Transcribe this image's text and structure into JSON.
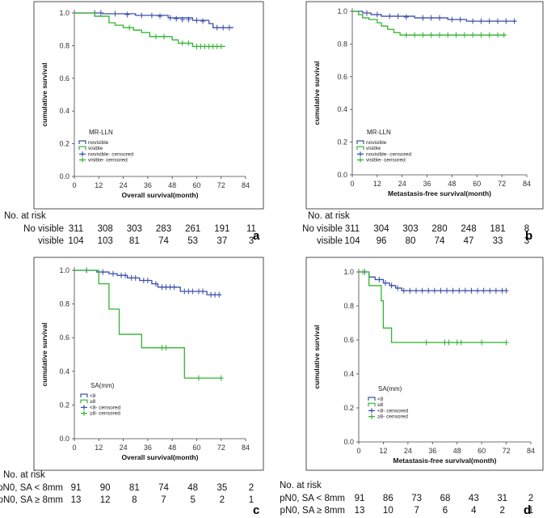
{
  "colors": {
    "blue": "#3b4fa8",
    "green": "#2fb52f"
  },
  "chart_data": [
    {
      "panel_label": "a",
      "type": "line",
      "kind": "kaplan-meier",
      "ylabel": "cumulative survival",
      "xlabel": "Overall survival(month)",
      "xticks": [
        "0",
        "12",
        "24",
        "36",
        "48",
        "60",
        "72",
        "84"
      ],
      "yticks": [
        "0.0",
        "0.2",
        "0.4",
        "0.6",
        "0.8",
        "1.0"
      ],
      "xlim": [
        0,
        84
      ],
      "ylim": [
        0,
        1
      ],
      "legend": {
        "title": "MR-LLN",
        "entries": [
          "novisible",
          "visible",
          "novisible- censored",
          "visible- censored"
        ]
      },
      "series": [
        {
          "name": "novisible",
          "color": "blue",
          "steps": [
            [
              0,
              1.0
            ],
            [
              14,
              0.995
            ],
            [
              30,
              0.985
            ],
            [
              46,
              0.97
            ],
            [
              58,
              0.955
            ],
            [
              66,
              0.935
            ],
            [
              68,
              0.91
            ],
            [
              78,
              0.91
            ]
          ],
          "censored": [
            [
              10,
              1.0
            ],
            [
              13,
              1.0
            ],
            [
              20,
              0.995
            ],
            [
              26,
              0.99
            ],
            [
              33,
              0.985
            ],
            [
              38,
              0.985
            ],
            [
              42,
              0.98
            ],
            [
              47,
              0.97
            ],
            [
              50,
              0.965
            ],
            [
              53,
              0.96
            ],
            [
              56,
              0.96
            ],
            [
              60,
              0.955
            ],
            [
              63,
              0.95
            ],
            [
              70,
              0.91
            ],
            [
              73,
              0.91
            ],
            [
              76,
              0.91
            ]
          ]
        },
        {
          "name": "visible",
          "color": "green",
          "steps": [
            [
              0,
              1.0
            ],
            [
              10,
              0.98
            ],
            [
              17,
              0.94
            ],
            [
              20,
              0.925
            ],
            [
              24,
              0.91
            ],
            [
              29,
              0.895
            ],
            [
              33,
              0.88
            ],
            [
              37,
              0.855
            ],
            [
              48,
              0.835
            ],
            [
              51,
              0.815
            ],
            [
              58,
              0.795
            ],
            [
              74,
              0.795
            ]
          ],
          "censored": [
            [
              27,
              0.91
            ],
            [
              40,
              0.855
            ],
            [
              44,
              0.855
            ],
            [
              53,
              0.815
            ],
            [
              56,
              0.815
            ],
            [
              60,
              0.795
            ],
            [
              62,
              0.795
            ],
            [
              64,
              0.795
            ],
            [
              66,
              0.795
            ],
            [
              68,
              0.795
            ],
            [
              70,
              0.795
            ],
            [
              72,
              0.795
            ]
          ]
        }
      ],
      "risk_table": {
        "header": "No. at risk",
        "rows": [
          {
            "label": "No visible",
            "values": [
              "311",
              "308",
              "303",
              "283",
              "261",
              "191",
              "11"
            ]
          },
          {
            "label": "visible",
            "values": [
              "104",
              "103",
              "81",
              "74",
              "53",
              "37",
              "3"
            ]
          }
        ]
      }
    },
    {
      "panel_label": "b",
      "type": "line",
      "kind": "kaplan-meier",
      "ylabel": "cumulative survival",
      "xlabel": "Metastasis-free survival(month)",
      "xticks": [
        "0",
        "12",
        "24",
        "36",
        "48",
        "60",
        "72",
        "84"
      ],
      "yticks": [
        "0.0",
        "0.2",
        "0.4",
        "0.6",
        "0.8",
        "1.0"
      ],
      "xlim": [
        0,
        84
      ],
      "ylim": [
        0,
        1
      ],
      "legend": {
        "title": "MR-LLN",
        "entries": [
          "novisible",
          "visible",
          "novisible- censored",
          "visible- censored"
        ]
      },
      "series": [
        {
          "name": "novisible",
          "color": "blue",
          "steps": [
            [
              0,
              1.0
            ],
            [
              5,
              0.99
            ],
            [
              9,
              0.98
            ],
            [
              14,
              0.97
            ],
            [
              30,
              0.96
            ],
            [
              46,
              0.95
            ],
            [
              55,
              0.94
            ],
            [
              79,
              0.94
            ]
          ],
          "censored": [
            [
              7,
              0.99
            ],
            [
              12,
              0.98
            ],
            [
              18,
              0.97
            ],
            [
              22,
              0.97
            ],
            [
              26,
              0.965
            ],
            [
              34,
              0.96
            ],
            [
              38,
              0.96
            ],
            [
              42,
              0.96
            ],
            [
              48,
              0.95
            ],
            [
              52,
              0.95
            ],
            [
              58,
              0.94
            ],
            [
              62,
              0.94
            ],
            [
              66,
              0.94
            ],
            [
              70,
              0.94
            ],
            [
              74,
              0.94
            ],
            [
              78,
              0.94
            ]
          ]
        },
        {
          "name": "visible",
          "color": "green",
          "steps": [
            [
              0,
              1.0
            ],
            [
              3,
              0.98
            ],
            [
              5,
              0.96
            ],
            [
              8,
              0.95
            ],
            [
              12,
              0.93
            ],
            [
              14,
              0.91
            ],
            [
              17,
              0.89
            ],
            [
              20,
              0.87
            ],
            [
              23,
              0.855
            ],
            [
              74,
              0.855
            ]
          ],
          "censored": [
            [
              26,
              0.855
            ],
            [
              30,
              0.855
            ],
            [
              34,
              0.855
            ],
            [
              38,
              0.855
            ],
            [
              42,
              0.855
            ],
            [
              46,
              0.855
            ],
            [
              50,
              0.855
            ],
            [
              54,
              0.855
            ],
            [
              58,
              0.855
            ],
            [
              62,
              0.855
            ],
            [
              66,
              0.855
            ],
            [
              70,
              0.855
            ],
            [
              73,
              0.855
            ]
          ]
        }
      ],
      "risk_table": {
        "header": "No. at risk",
        "rows": [
          {
            "label": "No visible",
            "values": [
              "311",
              "304",
              "303",
              "280",
              "248",
              "181",
              "8"
            ]
          },
          {
            "label": "visible",
            "values": [
              "104",
              "96",
              "80",
              "74",
              "47",
              "33",
              "3"
            ]
          }
        ]
      }
    },
    {
      "panel_label": "c",
      "type": "line",
      "kind": "kaplan-meier",
      "ylabel": "cumulative survival",
      "xlabel": "Overall survival(month)",
      "xticks": [
        "0",
        "12",
        "24",
        "36",
        "48",
        "60",
        "72",
        "84"
      ],
      "yticks": [
        "0.0",
        "0.2",
        "0.4",
        "0.6",
        "0.8",
        "1.0"
      ],
      "xlim": [
        0,
        84
      ],
      "ylim": [
        0,
        1
      ],
      "legend": {
        "title": "SA(mm)",
        "entries": [
          "<8",
          "≥8",
          "<8- censored",
          "≥8- censored"
        ]
      },
      "series": [
        {
          "name": "<8",
          "color": "blue",
          "steps": [
            [
              0,
              1.0
            ],
            [
              11,
              0.99
            ],
            [
              17,
              0.98
            ],
            [
              21,
              0.97
            ],
            [
              26,
              0.955
            ],
            [
              32,
              0.94
            ],
            [
              38,
              0.92
            ],
            [
              41,
              0.9
            ],
            [
              52,
              0.875
            ],
            [
              65,
              0.855
            ],
            [
              72,
              0.855
            ]
          ],
          "censored": [
            [
              6,
              1.0
            ],
            [
              14,
              0.99
            ],
            [
              19,
              0.98
            ],
            [
              23,
              0.97
            ],
            [
              25,
              0.97
            ],
            [
              28,
              0.955
            ],
            [
              30,
              0.955
            ],
            [
              34,
              0.94
            ],
            [
              36,
              0.94
            ],
            [
              40,
              0.92
            ],
            [
              43,
              0.9
            ],
            [
              45,
              0.9
            ],
            [
              47,
              0.9
            ],
            [
              49,
              0.9
            ],
            [
              54,
              0.875
            ],
            [
              56,
              0.875
            ],
            [
              58,
              0.875
            ],
            [
              61,
              0.875
            ],
            [
              63,
              0.875
            ],
            [
              67,
              0.855
            ],
            [
              69,
              0.855
            ],
            [
              71,
              0.855
            ]
          ]
        },
        {
          "name": "≥8",
          "color": "green",
          "steps": [
            [
              0,
              1.0
            ],
            [
              12,
              0.92
            ],
            [
              17,
              0.77
            ],
            [
              22,
              0.62
            ],
            [
              33,
              0.54
            ],
            [
              54,
              0.36
            ],
            [
              72,
              0.36
            ]
          ],
          "censored": [
            [
              43,
              0.54
            ],
            [
              45,
              0.54
            ],
            [
              61,
              0.36
            ],
            [
              72,
              0.36
            ]
          ]
        }
      ],
      "risk_table": {
        "header": "No. at risk",
        "rows": [
          {
            "label": "pN0, SA < 8mm",
            "values": [
              "91",
              "90",
              "81",
              "74",
              "48",
              "35",
              "2"
            ]
          },
          {
            "label": "pN0, SA ≥ 8mm",
            "values": [
              "13",
              "12",
              "8",
              "7",
              "5",
              "2",
              "1"
            ]
          }
        ]
      }
    },
    {
      "panel_label": "d",
      "type": "line",
      "kind": "kaplan-meier",
      "ylabel": "cumulative survival",
      "xlabel": "Metastasis-free survival(month)",
      "xticks": [
        "0",
        "12",
        "24",
        "36",
        "48",
        "60",
        "72",
        "84"
      ],
      "yticks": [
        "0.0",
        "0.2",
        "0.4",
        "0.6",
        "0.8",
        "1.0"
      ],
      "xlim": [
        0,
        84
      ],
      "ylim": [
        0,
        1
      ],
      "legend": {
        "title": "SA(mm)",
        "entries": [
          "<8",
          "≥8",
          "<8- censored",
          "≥8- censored"
        ]
      },
      "series": [
        {
          "name": "<8",
          "color": "blue",
          "steps": [
            [
              0,
              1.0
            ],
            [
              5,
              0.97
            ],
            [
              8,
              0.955
            ],
            [
              12,
              0.935
            ],
            [
              15,
              0.92
            ],
            [
              18,
              0.905
            ],
            [
              21,
              0.89
            ],
            [
              72,
              0.89
            ]
          ],
          "censored": [
            [
              3,
              1.0
            ],
            [
              10,
              0.955
            ],
            [
              13,
              0.935
            ],
            [
              16,
              0.92
            ],
            [
              19,
              0.905
            ],
            [
              22,
              0.89
            ],
            [
              25,
              0.89
            ],
            [
              28,
              0.89
            ],
            [
              31,
              0.89
            ],
            [
              34,
              0.89
            ],
            [
              37,
              0.89
            ],
            [
              40,
              0.89
            ],
            [
              43,
              0.89
            ],
            [
              46,
              0.89
            ],
            [
              49,
              0.89
            ],
            [
              52,
              0.89
            ],
            [
              55,
              0.89
            ],
            [
              58,
              0.89
            ],
            [
              61,
              0.89
            ],
            [
              64,
              0.89
            ],
            [
              67,
              0.89
            ],
            [
              70,
              0.89
            ],
            [
              72,
              0.89
            ]
          ]
        },
        {
          "name": "≥8",
          "color": "green",
          "steps": [
            [
              0,
              1.0
            ],
            [
              5,
              0.92
            ],
            [
              11,
              0.83
            ],
            [
              12,
              0.67
            ],
            [
              16,
              0.585
            ],
            [
              72,
              0.585
            ]
          ],
          "censored": [
            [
              2,
              1.0
            ],
            [
              33,
              0.585
            ],
            [
              42,
              0.585
            ],
            [
              44,
              0.585
            ],
            [
              48,
              0.585
            ],
            [
              50,
              0.585
            ],
            [
              60,
              0.585
            ],
            [
              72,
              0.585
            ]
          ]
        }
      ],
      "risk_table": {
        "header": "No. at risk",
        "rows": [
          {
            "label": "pN0, SA < 8mm",
            "values": [
              "91",
              "86",
              "73",
              "68",
              "43",
              "31",
              "2"
            ]
          },
          {
            "label": "pN0, SA ≥ 8mm",
            "values": [
              "13",
              "10",
              "7",
              "6",
              "4",
              "2",
              "1"
            ]
          }
        ]
      }
    }
  ]
}
